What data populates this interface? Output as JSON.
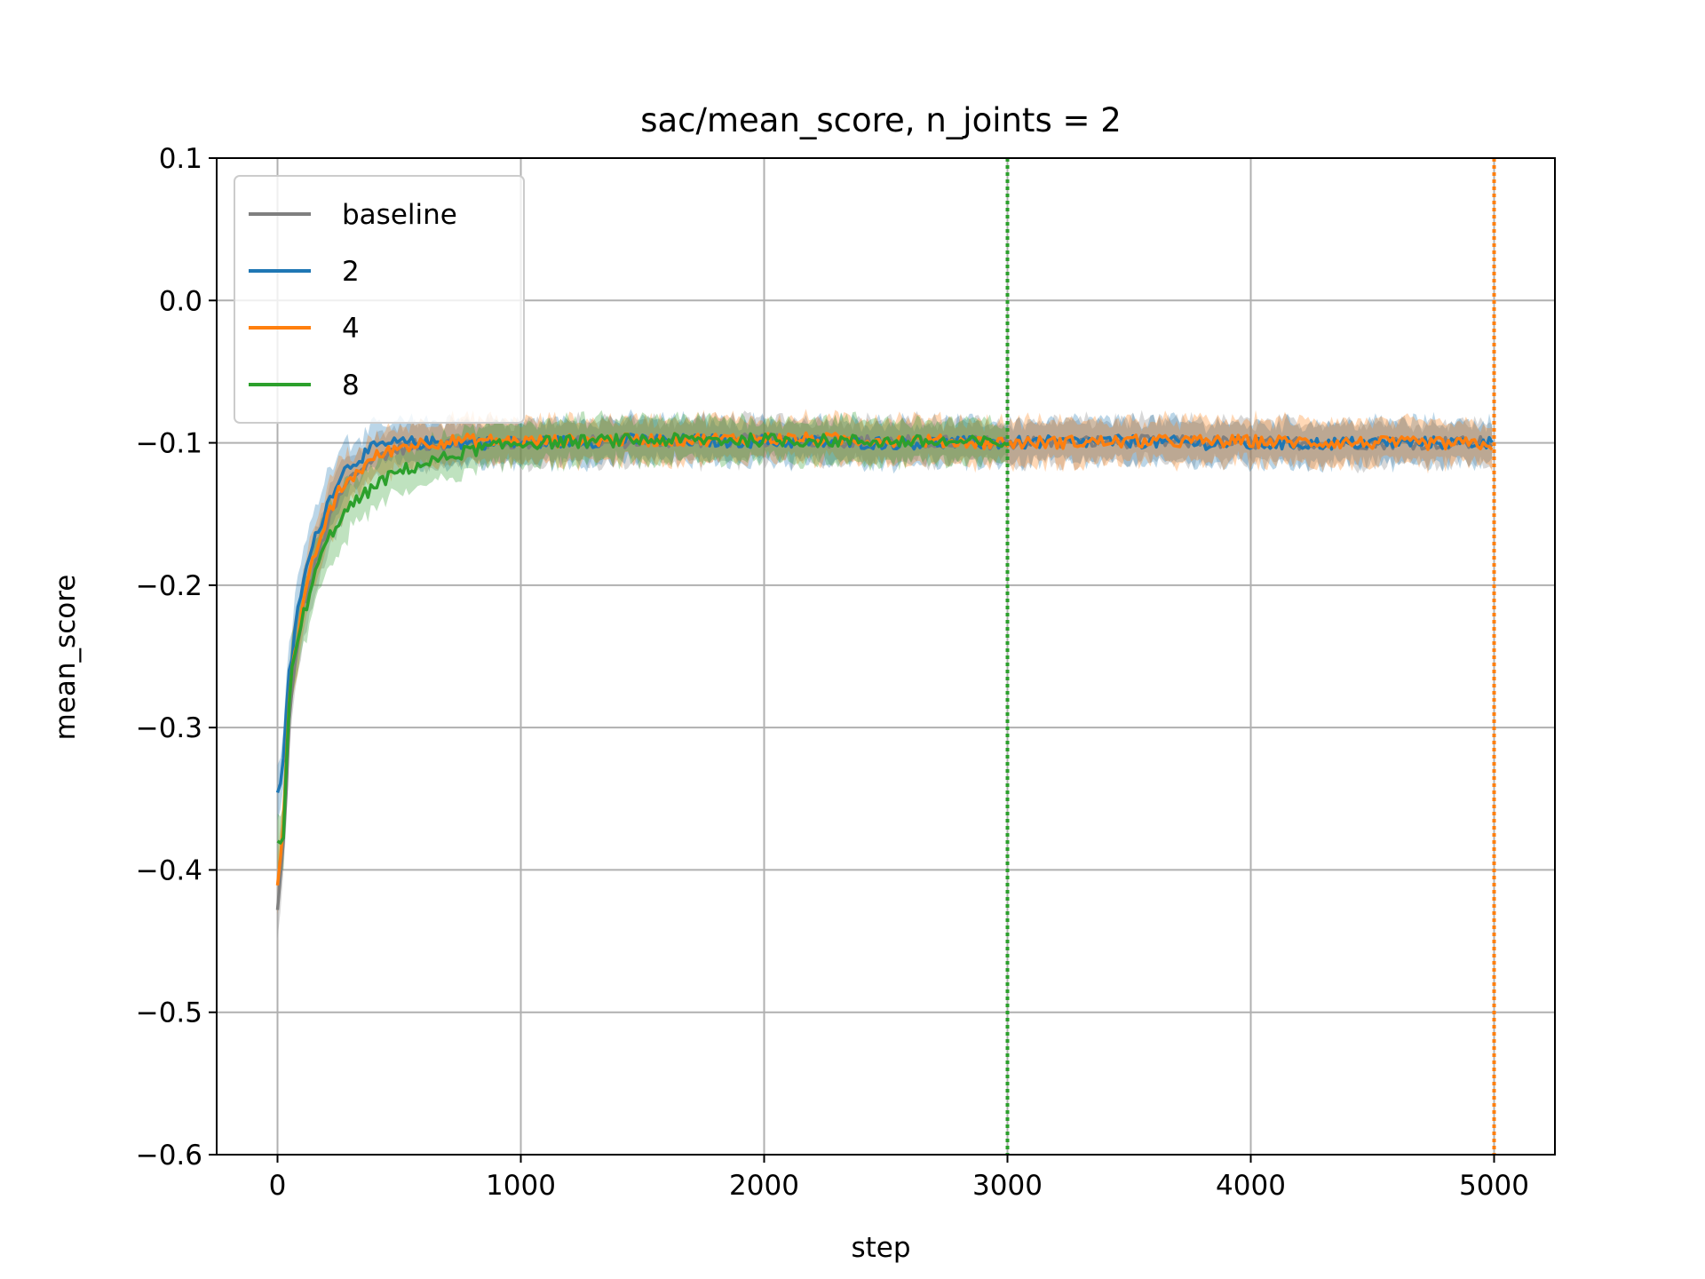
{
  "chart_data": {
    "type": "line",
    "title": "sac/mean_score, n_joints = 2",
    "xlabel": "step",
    "ylabel": "mean_score",
    "xlim": [
      -250,
      5250
    ],
    "ylim": [
      -0.6,
      0.1
    ],
    "xticks": [
      0,
      1000,
      2000,
      3000,
      4000,
      5000
    ],
    "xtick_labels": [
      "0",
      "1000",
      "2000",
      "3000",
      "4000",
      "5000"
    ],
    "yticks": [
      0.1,
      0.0,
      -0.1,
      -0.2,
      -0.3,
      -0.4,
      -0.5,
      -0.6
    ],
    "ytick_labels": [
      "0.1",
      "0.0",
      "−0.1",
      "−0.2",
      "−0.3",
      "−0.4",
      "−0.5",
      "−0.6"
    ],
    "grid": true,
    "legend_position": "top-left",
    "series": [
      {
        "name": "baseline",
        "color": "#7f7f7f",
        "x": [
          0,
          25,
          50,
          100,
          150,
          200,
          250,
          300,
          400,
          500,
          600,
          800,
          1000,
          1500,
          2000,
          2500,
          3000,
          3500,
          4000,
          4500,
          5000
        ],
        "values": [
          -0.43,
          -0.38,
          -0.29,
          -0.22,
          -0.19,
          -0.16,
          -0.14,
          -0.125,
          -0.11,
          -0.104,
          -0.101,
          -0.1,
          -0.1,
          -0.099,
          -0.098,
          -0.099,
          -0.1,
          -0.099,
          -0.1,
          -0.1,
          -0.1
        ]
      },
      {
        "name": "2",
        "color": "#1f77b4",
        "x": [
          0,
          25,
          50,
          100,
          150,
          200,
          250,
          300,
          400,
          500,
          600,
          800,
          1000,
          1500,
          2000,
          2500,
          3000,
          3500,
          4000,
          4500,
          5000
        ],
        "values": [
          -0.35,
          -0.32,
          -0.26,
          -0.2,
          -0.17,
          -0.145,
          -0.125,
          -0.115,
          -0.103,
          -0.1,
          -0.1,
          -0.1,
          -0.1,
          -0.098,
          -0.099,
          -0.1,
          -0.1,
          -0.099,
          -0.101,
          -0.1,
          -0.1
        ]
      },
      {
        "name": "4",
        "color": "#ff7f0e",
        "x": [
          0,
          25,
          50,
          100,
          150,
          200,
          250,
          300,
          400,
          500,
          600,
          800,
          1000,
          1500,
          2000,
          2500,
          3000,
          3500,
          4000,
          4500,
          5000
        ],
        "values": [
          -0.41,
          -0.36,
          -0.27,
          -0.22,
          -0.18,
          -0.155,
          -0.135,
          -0.125,
          -0.11,
          -0.103,
          -0.1,
          -0.098,
          -0.099,
          -0.098,
          -0.097,
          -0.098,
          -0.1,
          -0.099,
          -0.099,
          -0.1,
          -0.101
        ]
      },
      {
        "name": "8",
        "color": "#2ca02c",
        "x": [
          0,
          25,
          50,
          100,
          150,
          200,
          250,
          300,
          400,
          500,
          600,
          800,
          1000,
          1500,
          2000,
          2500,
          3000
        ],
        "values": [
          -0.385,
          -0.38,
          -0.27,
          -0.225,
          -0.195,
          -0.17,
          -0.155,
          -0.145,
          -0.13,
          -0.12,
          -0.115,
          -0.105,
          -0.1,
          -0.098,
          -0.098,
          -0.099,
          -0.1
        ]
      }
    ],
    "vlines": [
      {
        "x": 3000,
        "color": "#2ca02c",
        "style": "dotted"
      },
      {
        "x": 5000,
        "color": "#ff7f0e",
        "style": "dotted"
      }
    ]
  }
}
